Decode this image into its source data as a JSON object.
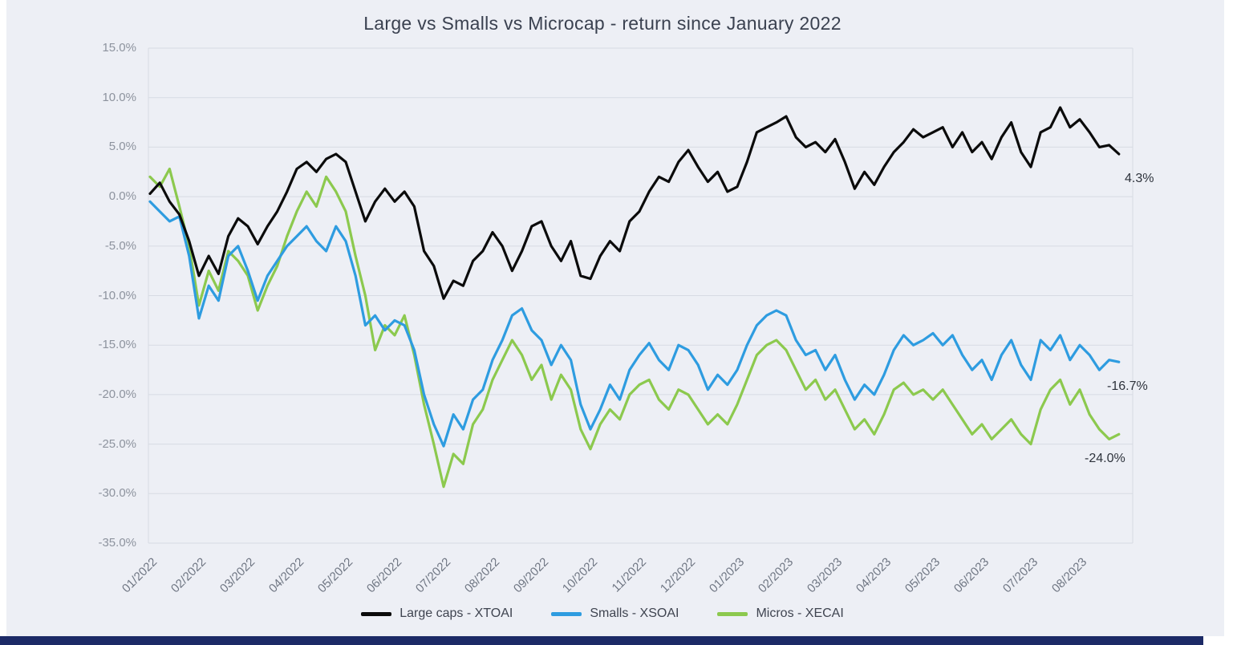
{
  "page": {
    "background_color": "#edeff5",
    "footer_bar_color": "#1c2a66"
  },
  "chart_data": {
    "type": "line",
    "title": "Large vs Smalls vs Microcap - return since January 2022",
    "xlabel": "",
    "ylabel": "",
    "ylim": [
      -35,
      15
    ],
    "y_tick_step": 5,
    "grid": "horizontal",
    "legend_position": "bottom",
    "x_start": 0,
    "x_step": 0.2,
    "x_unit": "month-index",
    "colors": {
      "grid": "#d7dbe3"
    },
    "y_tick_labels": [
      "15.0%",
      "10.0%",
      "5.0%",
      "0.0%",
      "-5.0%",
      "-10.0%",
      "-15.0%",
      "-20.0%",
      "-25.0%",
      "-30.0%",
      "-35.0%"
    ],
    "x_tick_labels": [
      "01/2022",
      "02/2022",
      "03/2022",
      "04/2022",
      "05/2022",
      "06/2022",
      "07/2022",
      "08/2022",
      "09/2022",
      "10/2022",
      "11/2022",
      "12/2022",
      "01/2023",
      "02/2023",
      "03/2023",
      "04/2023",
      "05/2023",
      "06/2023",
      "07/2023",
      "08/2023"
    ],
    "series": [
      {
        "name": "Large caps - XTOAI",
        "slug": "large-caps",
        "color": "#0b0b0b",
        "end_label": "4.3%",
        "values": [
          0.3,
          1.4,
          -0.5,
          -1.8,
          -4.5,
          -8.0,
          -6.0,
          -7.8,
          -4.0,
          -2.2,
          -3.0,
          -4.8,
          -3.0,
          -1.5,
          0.5,
          2.8,
          3.5,
          2.5,
          3.8,
          4.3,
          3.5,
          0.5,
          -2.5,
          -0.5,
          0.8,
          -0.5,
          0.5,
          -1.0,
          -5.5,
          -7.0,
          -10.3,
          -8.5,
          -9.0,
          -6.5,
          -5.5,
          -3.6,
          -5.0,
          -7.5,
          -5.5,
          -3.0,
          -2.5,
          -5.0,
          -6.5,
          -4.5,
          -8.0,
          -8.3,
          -6.0,
          -4.5,
          -5.5,
          -2.5,
          -1.5,
          0.5,
          2.0,
          1.5,
          3.5,
          4.7,
          3.0,
          1.5,
          2.5,
          0.5,
          1.0,
          3.5,
          6.5,
          7.0,
          7.5,
          8.1,
          6.0,
          5.0,
          5.5,
          4.5,
          5.8,
          3.5,
          0.8,
          2.5,
          1.2,
          3.0,
          4.5,
          5.5,
          6.8,
          6.0,
          6.5,
          7.0,
          5.0,
          6.5,
          4.5,
          5.5,
          3.8,
          6.0,
          7.5,
          4.5,
          3.0,
          6.5,
          7.0,
          9.0,
          7.0,
          7.8,
          6.5,
          5.0,
          5.2,
          4.3
        ]
      },
      {
        "name": "Smalls - XSOAI",
        "slug": "smalls",
        "color": "#2e9ce0",
        "end_label": "-16.7%",
        "values": [
          -0.5,
          -1.5,
          -2.5,
          -2.0,
          -6.0,
          -12.3,
          -9.0,
          -10.5,
          -6.0,
          -5.0,
          -7.5,
          -10.5,
          -8.0,
          -6.5,
          -5.0,
          -4.0,
          -3.0,
          -4.5,
          -5.5,
          -3.0,
          -4.5,
          -8.0,
          -13.0,
          -12.0,
          -13.5,
          -12.5,
          -13.0,
          -15.5,
          -20.0,
          -23.0,
          -25.2,
          -22.0,
          -23.5,
          -20.5,
          -19.5,
          -16.5,
          -14.5,
          -12.0,
          -11.3,
          -13.5,
          -14.5,
          -17.0,
          -15.0,
          -16.5,
          -21.0,
          -23.5,
          -21.5,
          -19.0,
          -20.5,
          -17.5,
          -16.0,
          -14.8,
          -16.5,
          -17.5,
          -15.0,
          -15.5,
          -17.0,
          -19.5,
          -18.0,
          -19.0,
          -17.5,
          -15.0,
          -13.0,
          -12.0,
          -11.5,
          -12.0,
          -14.5,
          -16.0,
          -15.5,
          -17.5,
          -16.0,
          -18.5,
          -20.5,
          -19.0,
          -20.0,
          -18.0,
          -15.5,
          -14.0,
          -15.0,
          -14.5,
          -13.8,
          -15.0,
          -14.0,
          -16.0,
          -17.5,
          -16.5,
          -18.5,
          -16.0,
          -14.5,
          -17.0,
          -18.5,
          -14.5,
          -15.5,
          -14.0,
          -16.5,
          -15.0,
          -16.0,
          -17.5,
          -16.5,
          -16.7
        ]
      },
      {
        "name": "Micros - XECAI",
        "slug": "micros",
        "color": "#8cc94e",
        "end_label": "-24.0%",
        "values": [
          2.0,
          1.0,
          2.8,
          -1.0,
          -5.0,
          -11.0,
          -7.5,
          -9.5,
          -5.5,
          -6.5,
          -8.0,
          -11.5,
          -9.0,
          -7.0,
          -4.0,
          -1.5,
          0.5,
          -1.0,
          2.0,
          0.5,
          -1.5,
          -6.0,
          -10.0,
          -15.5,
          -13.0,
          -14.0,
          -12.0,
          -16.0,
          -21.0,
          -25.0,
          -29.3,
          -26.0,
          -27.0,
          -23.0,
          -21.5,
          -18.5,
          -16.5,
          -14.5,
          -16.0,
          -18.5,
          -17.0,
          -20.5,
          -18.0,
          -19.5,
          -23.5,
          -25.5,
          -23.0,
          -21.5,
          -22.5,
          -20.0,
          -19.0,
          -18.5,
          -20.5,
          -21.5,
          -19.5,
          -20.0,
          -21.5,
          -23.0,
          -22.0,
          -23.0,
          -21.0,
          -18.5,
          -16.0,
          -15.0,
          -14.5,
          -15.5,
          -17.5,
          -19.5,
          -18.5,
          -20.5,
          -19.5,
          -21.5,
          -23.5,
          -22.5,
          -24.0,
          -22.0,
          -19.5,
          -18.8,
          -20.0,
          -19.5,
          -20.5,
          -19.5,
          -21.0,
          -22.5,
          -24.0,
          -23.0,
          -24.5,
          -23.5,
          -22.5,
          -24.0,
          -25.0,
          -21.5,
          -19.5,
          -18.5,
          -21.0,
          -19.5,
          -22.0,
          -23.5,
          -24.5,
          -24.0
        ]
      }
    ]
  }
}
